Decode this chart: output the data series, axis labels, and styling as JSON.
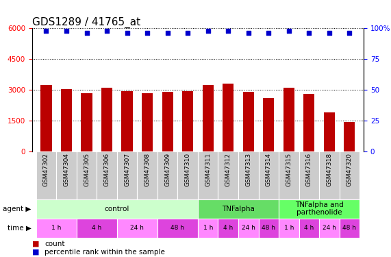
{
  "title": "GDS1289 / 41765_at",
  "samples": [
    "GSM47302",
    "GSM47304",
    "GSM47305",
    "GSM47306",
    "GSM47307",
    "GSM47308",
    "GSM47309",
    "GSM47310",
    "GSM47311",
    "GSM47312",
    "GSM47313",
    "GSM47314",
    "GSM47315",
    "GSM47316",
    "GSM47318",
    "GSM47320"
  ],
  "counts": [
    3250,
    3050,
    2850,
    3100,
    2950,
    2850,
    2900,
    2950,
    3250,
    3300,
    2900,
    2600,
    3100,
    2800,
    1900,
    1450
  ],
  "percentile_vals": [
    98,
    98,
    96,
    98,
    96,
    96,
    96,
    96,
    98,
    98,
    96,
    96,
    98,
    96,
    96,
    96
  ],
  "bar_color": "#bb0000",
  "dot_color": "#0000cc",
  "ylim_left": [
    0,
    6000
  ],
  "ylim_right": [
    0,
    100
  ],
  "yticks_left": [
    0,
    1500,
    3000,
    4500,
    6000
  ],
  "yticks_right": [
    0,
    25,
    50,
    75,
    100
  ],
  "agent_groups": [
    {
      "label": "control",
      "start": 0,
      "end": 8,
      "color": "#ccffcc"
    },
    {
      "label": "TNFalpha",
      "start": 8,
      "end": 12,
      "color": "#66dd66"
    },
    {
      "label": "TNFalpha and\nparthenolide",
      "start": 12,
      "end": 16,
      "color": "#66ff66"
    }
  ],
  "time_groups": [
    {
      "label": "1 h",
      "start": 0,
      "end": 2,
      "color": "#ff88ff"
    },
    {
      "label": "4 h",
      "start": 2,
      "end": 4,
      "color": "#dd44dd"
    },
    {
      "label": "24 h",
      "start": 4,
      "end": 6,
      "color": "#ff88ff"
    },
    {
      "label": "48 h",
      "start": 6,
      "end": 8,
      "color": "#dd44dd"
    },
    {
      "label": "1 h",
      "start": 8,
      "end": 9,
      "color": "#ff88ff"
    },
    {
      "label": "4 h",
      "start": 9,
      "end": 10,
      "color": "#dd44dd"
    },
    {
      "label": "24 h",
      "start": 10,
      "end": 11,
      "color": "#ff88ff"
    },
    {
      "label": "48 h",
      "start": 11,
      "end": 12,
      "color": "#dd44dd"
    },
    {
      "label": "1 h",
      "start": 12,
      "end": 13,
      "color": "#ff88ff"
    },
    {
      "label": "4 h",
      "start": 13,
      "end": 14,
      "color": "#dd44dd"
    },
    {
      "label": "24 h",
      "start": 14,
      "end": 15,
      "color": "#ff88ff"
    },
    {
      "label": "48 h",
      "start": 15,
      "end": 16,
      "color": "#dd44dd"
    }
  ],
  "background_color": "#ffffff",
  "title_fontsize": 11,
  "tick_fontsize": 7.5,
  "label_fontsize": 8,
  "bar_width": 0.55
}
